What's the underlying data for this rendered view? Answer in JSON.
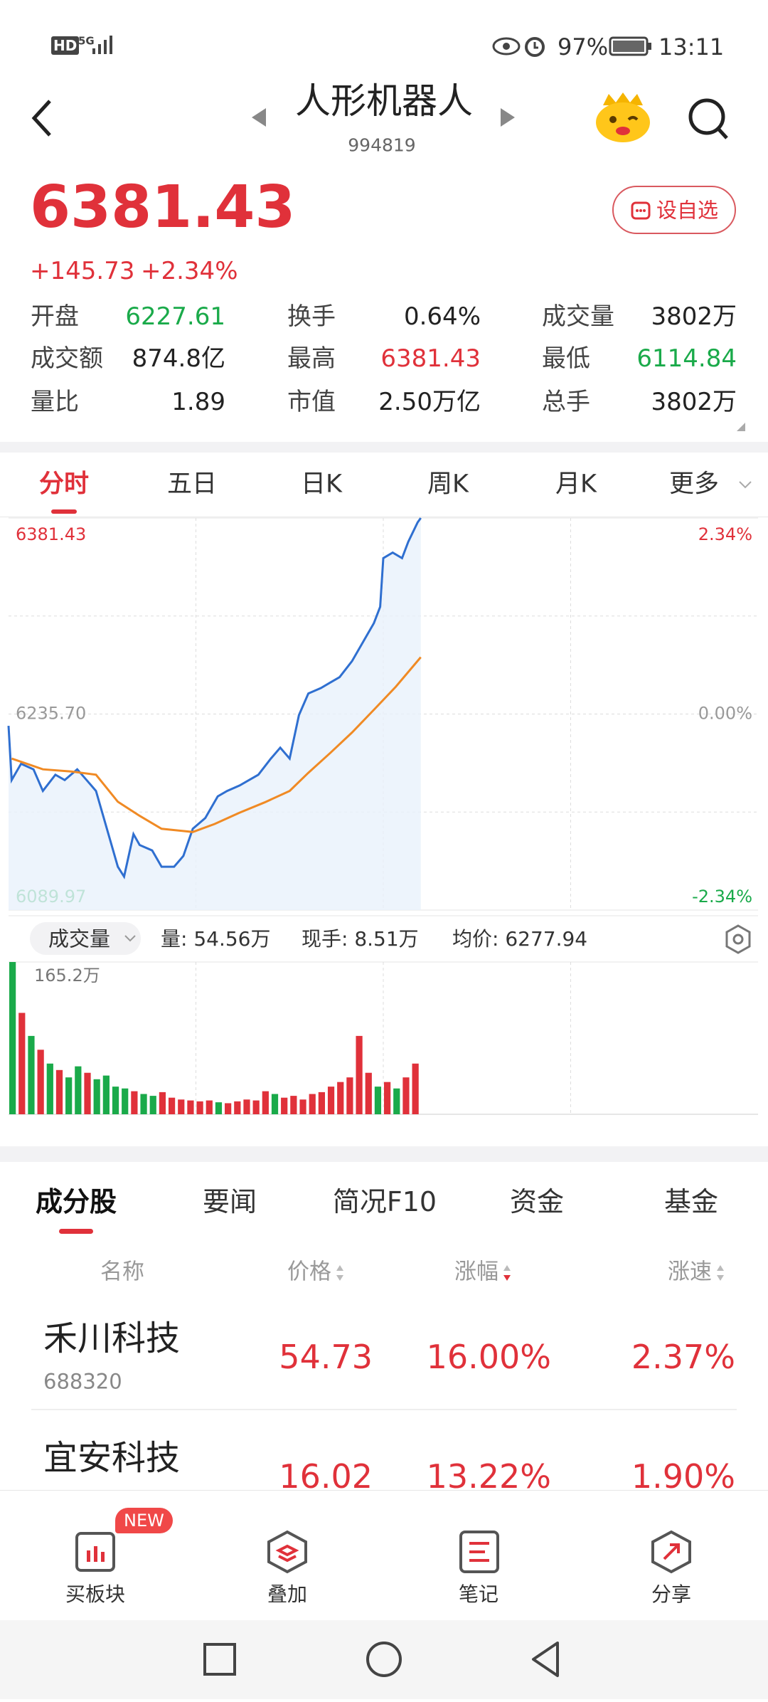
{
  "status_bar": {
    "hd": "HD",
    "network": "5G",
    "battery": "97%",
    "time": "13:11"
  },
  "header": {
    "title": "人形机器人",
    "code": "994819"
  },
  "quote": {
    "price": "6381.43",
    "change": "+145.73",
    "change_pct": "+2.34%",
    "watch_button": "设自选"
  },
  "stats": [
    {
      "label": "开盘",
      "value": "6227.61",
      "color": "#1aaa4a"
    },
    {
      "label": "换手",
      "value": "0.64%",
      "color": "#222222"
    },
    {
      "label": "成交量",
      "value": "3802万",
      "color": "#222222"
    },
    {
      "label": "成交额",
      "value": "874.8亿",
      "color": "#222222"
    },
    {
      "label": "最高",
      "value": "6381.43",
      "color": "#e0313a"
    },
    {
      "label": "最低",
      "value": "6114.84",
      "color": "#1aaa4a"
    },
    {
      "label": "量比",
      "value": "1.89",
      "color": "#222222"
    },
    {
      "label": "市值",
      "value": "2.50万亿",
      "color": "#222222"
    },
    {
      "label": "总手",
      "value": "3802万",
      "color": "#222222"
    }
  ],
  "chart_tabs": {
    "items": [
      "分时",
      "五日",
      "日K",
      "周K",
      "月K",
      "更多"
    ],
    "active": 0
  },
  "chart_data": {
    "type": "line",
    "xlim": [
      0,
      240
    ],
    "ylim": [
      6089.97,
      6381.43
    ],
    "yticks": [
      6381.43,
      {
        "value": 6235.7,
        "label": "6235.70"
      },
      6089.97
    ],
    "y2lim": [
      -2.34,
      2.34
    ],
    "y2ticks": [
      {
        "value": 2.34,
        "label": "2.34%"
      },
      {
        "value": 0,
        "label": "0.00%"
      },
      {
        "value": -2.34,
        "label": "-2.34%"
      }
    ],
    "series": [
      {
        "color": "#2f6fd0",
        "x": [
          0,
          1,
          4,
          8,
          11,
          15,
          18,
          22,
          25,
          28,
          32,
          35,
          37,
          40,
          42,
          46,
          49,
          53,
          56,
          59,
          63,
          67,
          70,
          74,
          77,
          80,
          84,
          87,
          90,
          93,
          96,
          100,
          103,
          106,
          110,
          113,
          117,
          119,
          120,
          123,
          126,
          128,
          131,
          132
        ],
        "values": [
          6226.9,
          6186.6,
          6198.7,
          6194.6,
          6178.5,
          6190.6,
          6186.6,
          6194.6,
          6186.6,
          6178.5,
          6146.4,
          6122.2,
          6114.84,
          6146.4,
          6138.3,
          6134.3,
          6122.2,
          6122.2,
          6130.2,
          6150.4,
          6158.4,
          6174.5,
          6178.5,
          6182.6,
          6186.6,
          6190.6,
          6202.6,
          6210.7,
          6202.6,
          6234.9,
          6251.0,
          6255.0,
          6259.1,
          6263.1,
          6275.1,
          6287.2,
          6303.3,
          6315.4,
          6351.6,
          6355.7,
          6351.6,
          6363.7,
          6378.2,
          6381.43
        ]
      },
      {
        "color": "#f08a24",
        "x": [
          1,
          11,
          20,
          28,
          35,
          42,
          49,
          59,
          66,
          74,
          82,
          90,
          96,
          103,
          110,
          117,
          124,
          132
        ],
        "values": [
          6202.6,
          6194.6,
          6193.0,
          6190.6,
          6170.5,
          6160.0,
          6150.4,
          6148.0,
          6154.0,
          6162.4,
          6170.0,
          6178.5,
          6192.0,
          6206.7,
          6222.0,
          6238.9,
          6256.0,
          6277.94
        ]
      }
    ]
  },
  "volume": {
    "type": "bar",
    "selector": "成交量",
    "stats": [
      "量: 54.56万",
      "现手: 8.51万",
      "均价: 6277.94"
    ],
    "ylim": [
      0,
      165.2
    ],
    "yticks": [
      {
        "value": 165.2,
        "label": "165.2万"
      }
    ],
    "x": [
      0,
      3,
      6,
      9,
      12,
      15,
      18,
      21,
      24,
      27,
      30,
      33,
      36,
      39,
      42,
      45,
      48,
      51,
      54,
      57,
      60,
      63,
      66,
      69,
      72,
      75,
      78,
      81,
      84,
      87,
      90,
      93,
      96,
      99,
      102,
      105,
      108,
      111,
      114,
      117,
      120,
      123,
      126,
      129
    ],
    "values": [
      165.2,
      110,
      85,
      70,
      55,
      48,
      40,
      52,
      45,
      38,
      42,
      30,
      28,
      25,
      22,
      20,
      24,
      18,
      16,
      15,
      14,
      15,
      13,
      12,
      14,
      16,
      15,
      25,
      22,
      18,
      20,
      16,
      22,
      24,
      30,
      35,
      40,
      85,
      45,
      30,
      35,
      28,
      40,
      55
    ],
    "colors": [
      "#1aaa4a",
      "#e0313a",
      "#1aaa4a",
      "#e0313a",
      "#1aaa4a",
      "#e0313a",
      "#1aaa4a",
      "#1aaa4a",
      "#e0313a",
      "#1aaa4a",
      "#1aaa4a",
      "#1aaa4a",
      "#1aaa4a",
      "#e0313a",
      "#1aaa4a",
      "#1aaa4a",
      "#e0313a",
      "#e0313a",
      "#e0313a",
      "#e0313a",
      "#e0313a",
      "#e0313a",
      "#1aaa4a",
      "#e0313a",
      "#e0313a",
      "#e0313a",
      "#e0313a",
      "#e0313a",
      "#1aaa4a",
      "#e0313a",
      "#e0313a",
      "#e0313a",
      "#e0313a",
      "#e0313a",
      "#e0313a",
      "#e0313a",
      "#e0313a",
      "#e0313a",
      "#e0313a",
      "#1aaa4a",
      "#e0313a",
      "#1aaa4a",
      "#e0313a",
      "#e0313a"
    ]
  },
  "bottom_tabs": {
    "items": [
      "成分股",
      "要闻",
      "简况F10",
      "资金",
      "基金"
    ],
    "active": 0
  },
  "table": {
    "columns": [
      "名称",
      "价格",
      "涨幅",
      "涨速"
    ],
    "rows": [
      {
        "name": "禾川科技",
        "code": "688320",
        "price": "54.73",
        "change": "16.00%",
        "speed": "2.37%"
      },
      {
        "name": "宜安科技",
        "price": "16.02",
        "change": "13.22%",
        "speed": "1.90%"
      }
    ]
  },
  "bottom_nav": {
    "badge": "NEW",
    "items": [
      "买板块",
      "叠加",
      "笔记",
      "分享"
    ]
  }
}
